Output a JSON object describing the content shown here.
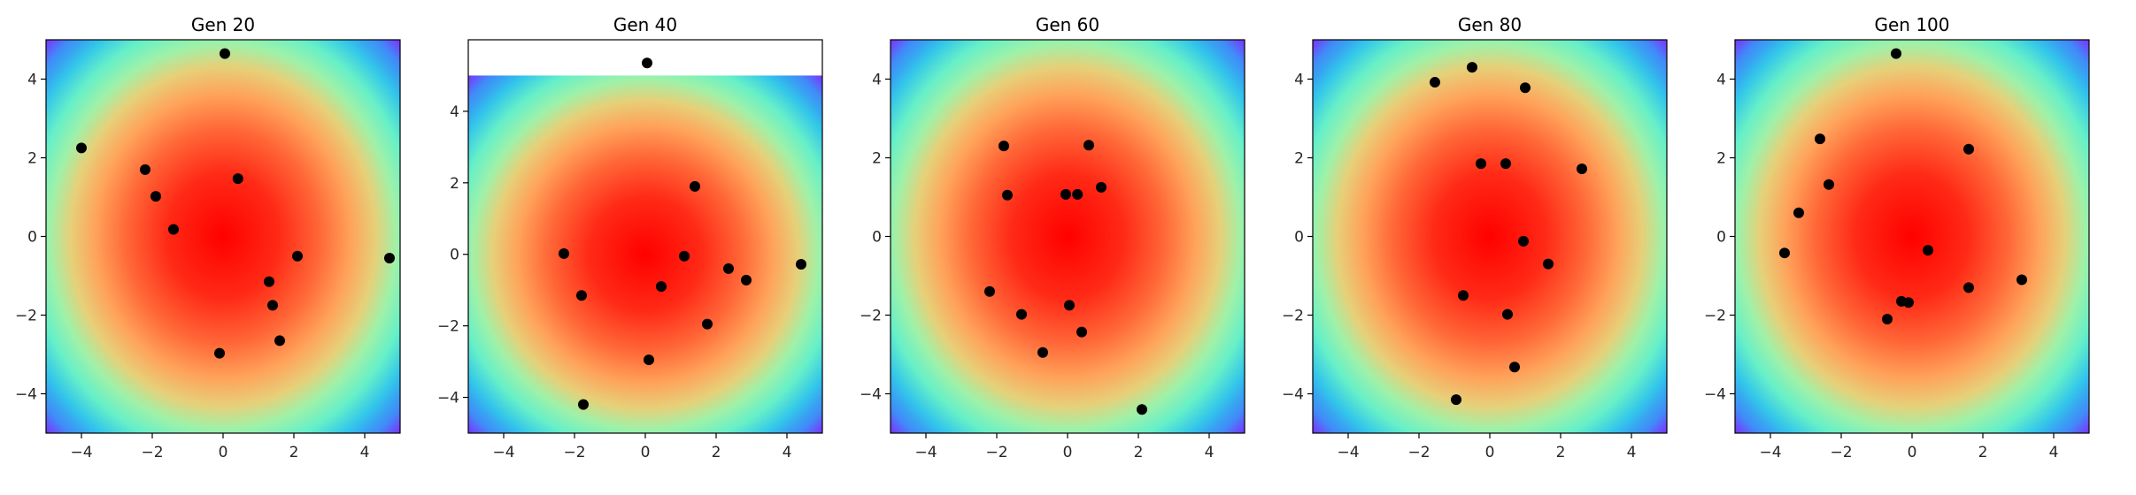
{
  "chart_data": [
    {
      "type": "scatter",
      "title": "Gen 20",
      "xlim": [
        -5,
        5
      ],
      "ylim": [
        -5,
        5
      ],
      "xticks": [
        "−4",
        "−2",
        "0",
        "2",
        "4"
      ],
      "yticks": [
        "−4",
        "−2",
        "0",
        "2",
        "4"
      ],
      "background": "contourf of a radial function, rainbow colormap, maximum (red) at (0,0)",
      "grid": false,
      "points": [
        {
          "x": 0.05,
          "y": 4.65
        },
        {
          "x": -4.0,
          "y": 2.25
        },
        {
          "x": -2.2,
          "y": 1.7
        },
        {
          "x": -1.9,
          "y": 1.02
        },
        {
          "x": 0.42,
          "y": 1.47
        },
        {
          "x": -1.4,
          "y": 0.18
        },
        {
          "x": 2.1,
          "y": -0.5
        },
        {
          "x": 4.7,
          "y": -0.55
        },
        {
          "x": 1.3,
          "y": -1.15
        },
        {
          "x": 1.4,
          "y": -1.75
        },
        {
          "x": 1.6,
          "y": -2.65
        },
        {
          "x": -0.1,
          "y": -2.97
        }
      ]
    },
    {
      "type": "scatter",
      "title": "Gen 40",
      "xlim": [
        -5,
        5
      ],
      "ylim": [
        -5,
        6
      ],
      "xticks": [
        "−4",
        "−2",
        "0",
        "2",
        "4"
      ],
      "yticks": [
        "−4",
        "−2",
        "0",
        "2",
        "4"
      ],
      "background": "contourf of a radial function, rainbow colormap, maximum (red) at (0,0); filled only up to y = 5",
      "grid": false,
      "points": [
        {
          "x": 0.05,
          "y": 5.35
        },
        {
          "x": 1.4,
          "y": 1.9
        },
        {
          "x": -2.3,
          "y": 0.02
        },
        {
          "x": 1.1,
          "y": -0.05
        },
        {
          "x": 4.4,
          "y": -0.28
        },
        {
          "x": 2.35,
          "y": -0.4
        },
        {
          "x": 2.85,
          "y": -0.72
        },
        {
          "x": 0.45,
          "y": -0.9
        },
        {
          "x": -1.8,
          "y": -1.15
        },
        {
          "x": 1.75,
          "y": -1.95
        },
        {
          "x": 0.1,
          "y": -2.95
        },
        {
          "x": -1.75,
          "y": -4.2
        }
      ]
    },
    {
      "type": "scatter",
      "title": "Gen 60",
      "xlim": [
        -5,
        5
      ],
      "ylim": [
        -5,
        5
      ],
      "xticks": [
        "−4",
        "−2",
        "0",
        "2",
        "4"
      ],
      "yticks": [
        "−4",
        "−2",
        "0",
        "2",
        "4"
      ],
      "background": "contourf of a radial function, rainbow colormap, maximum (red) at (0,0)",
      "grid": false,
      "points": [
        {
          "x": -1.8,
          "y": 2.3
        },
        {
          "x": 0.6,
          "y": 2.32
        },
        {
          "x": 0.95,
          "y": 1.25
        },
        {
          "x": -1.7,
          "y": 1.05
        },
        {
          "x": -0.05,
          "y": 1.07
        },
        {
          "x": 0.28,
          "y": 1.07
        },
        {
          "x": -2.2,
          "y": -1.4
        },
        {
          "x": 0.05,
          "y": -1.75
        },
        {
          "x": -1.3,
          "y": -1.98
        },
        {
          "x": 0.4,
          "y": -2.43
        },
        {
          "x": -0.7,
          "y": -2.95
        },
        {
          "x": 2.1,
          "y": -4.4
        }
      ]
    },
    {
      "type": "scatter",
      "title": "Gen 80",
      "xlim": [
        -5,
        5
      ],
      "ylim": [
        -5,
        5
      ],
      "xticks": [
        "−4",
        "−2",
        "0",
        "2",
        "4"
      ],
      "yticks": [
        "−4",
        "−2",
        "0",
        "2",
        "4"
      ],
      "background": "contourf of a radial function, rainbow colormap, maximum (red) at (0,0)",
      "grid": false,
      "points": [
        {
          "x": -0.5,
          "y": 4.3
        },
        {
          "x": -1.55,
          "y": 3.92
        },
        {
          "x": 1.0,
          "y": 3.78
        },
        {
          "x": -0.25,
          "y": 1.85
        },
        {
          "x": 0.45,
          "y": 1.85
        },
        {
          "x": 2.6,
          "y": 1.72
        },
        {
          "x": 0.95,
          "y": -0.12
        },
        {
          "x": 1.65,
          "y": -0.7
        },
        {
          "x": -0.75,
          "y": -1.5
        },
        {
          "x": 0.5,
          "y": -1.98
        },
        {
          "x": 0.7,
          "y": -3.32
        },
        {
          "x": -0.95,
          "y": -4.15
        }
      ]
    },
    {
      "type": "scatter",
      "title": "Gen 100",
      "xlim": [
        -5,
        5
      ],
      "ylim": [
        -5,
        5
      ],
      "xticks": [
        "−4",
        "−2",
        "0",
        "2",
        "4"
      ],
      "yticks": [
        "−4",
        "−2",
        "0",
        "2",
        "4"
      ],
      "background": "contourf of a radial function, rainbow colormap, maximum (red) at (0,0)",
      "grid": false,
      "points": [
        {
          "x": -0.45,
          "y": 4.65
        },
        {
          "x": -2.6,
          "y": 2.48
        },
        {
          "x": 1.6,
          "y": 2.22
        },
        {
          "x": -2.35,
          "y": 1.32
        },
        {
          "x": -3.2,
          "y": 0.6
        },
        {
          "x": -3.6,
          "y": -0.42
        },
        {
          "x": 0.45,
          "y": -0.35
        },
        {
          "x": 3.1,
          "y": -1.1
        },
        {
          "x": 1.6,
          "y": -1.3
        },
        {
          "x": -0.3,
          "y": -1.65
        },
        {
          "x": -0.1,
          "y": -1.68
        },
        {
          "x": -0.7,
          "y": -2.1
        }
      ]
    }
  ]
}
